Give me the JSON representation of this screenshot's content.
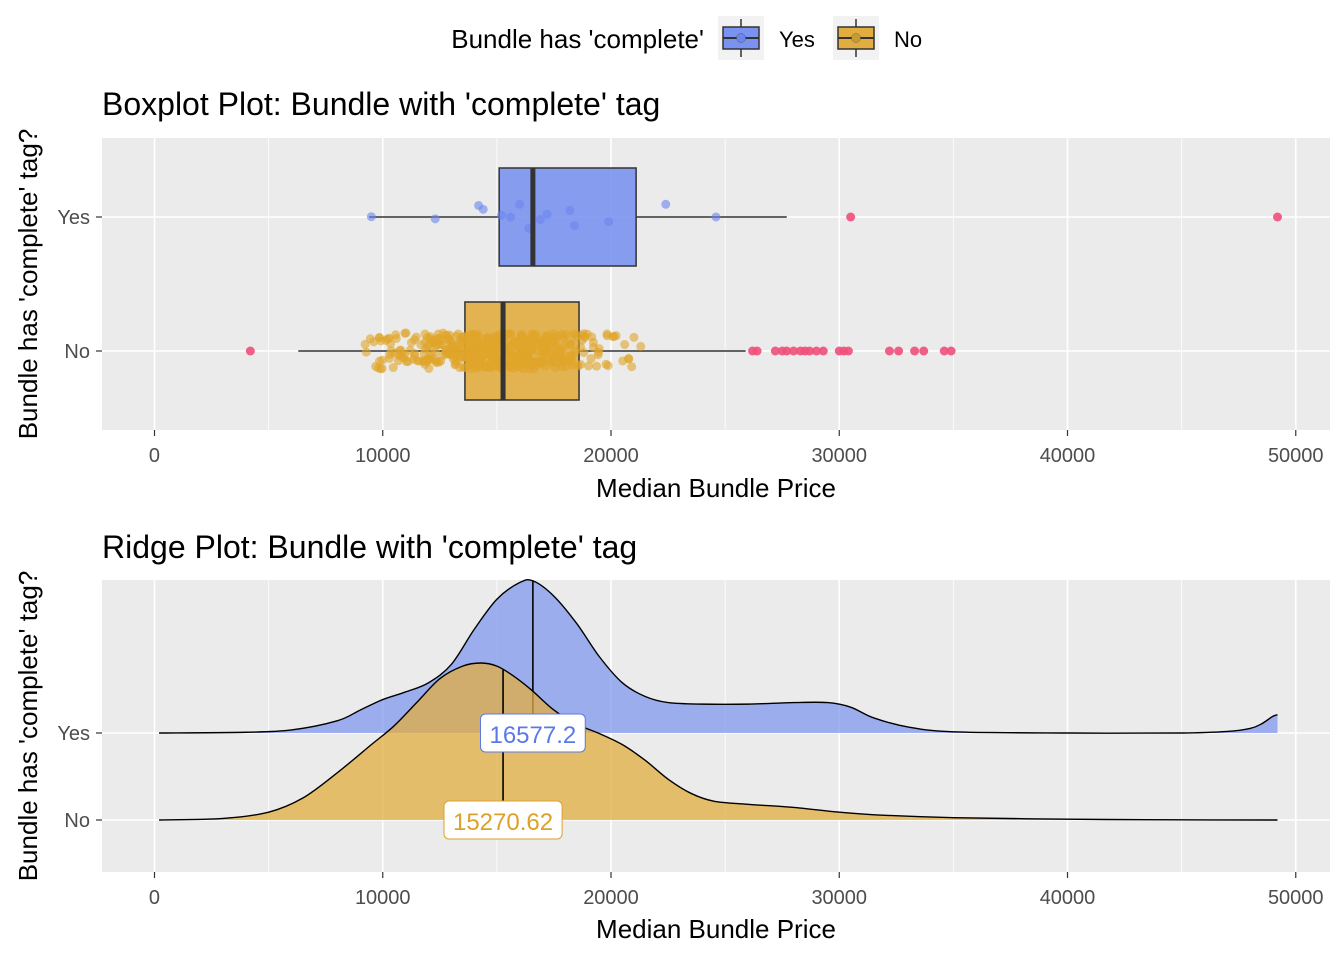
{
  "legend": {
    "title": "Bundle has 'complete'",
    "placement": "top-center",
    "items": [
      {
        "label": "Yes",
        "color": "#6A85EE"
      },
      {
        "label": "No",
        "color": "#E0A52A"
      }
    ]
  },
  "colors": {
    "yes_fill": "#7B93F0",
    "no_fill": "#E2AD40",
    "outlier": "#F0507A",
    "panel_bg": "#EBEBEB",
    "grid": "#FFFFFF",
    "box_line": "#333333"
  },
  "chart_data": [
    {
      "type": "boxplot",
      "title": "Boxplot Plot: Bundle with 'complete' tag",
      "xlabel": "Median Bundle Price",
      "ylabel": "Bundle has 'complete' tag?",
      "xlim": [
        -2300,
        51500
      ],
      "x_ticks": [
        0,
        10000,
        20000,
        30000,
        40000,
        50000
      ],
      "x_tick_labels": [
        "0",
        "10000",
        "20000",
        "30000",
        "40000",
        "50000"
      ],
      "categories": [
        "Yes",
        "No"
      ],
      "grid": true,
      "boxes": [
        {
          "name": "Yes",
          "whisker_low": 9400,
          "q1": 15100,
          "median": 16577.2,
          "q3": 21100,
          "whisker_high": 27700,
          "outliers": [
            30500,
            49200
          ],
          "points": [
            9500,
            12300,
            14200,
            14400,
            15200,
            15600,
            16000,
            16400,
            16900,
            17200,
            18200,
            18400,
            19900,
            22400,
            24600
          ]
        },
        {
          "name": "No",
          "whisker_low": 6300,
          "q1": 13600,
          "median": 15270.62,
          "q3": 18600,
          "whisker_high": 25900,
          "outliers": [
            4200,
            26200,
            26400,
            27200,
            27500,
            27700,
            28000,
            28300,
            28500,
            28700,
            29000,
            29300,
            30000,
            30200,
            30400,
            32200,
            32600,
            33300,
            33700,
            34600,
            34900
          ],
          "points_range": [
            7800,
            22500
          ]
        }
      ]
    },
    {
      "type": "ridge",
      "title": "Ridge Plot: Bundle with 'complete' tag",
      "xlabel": "Median Bundle Price",
      "ylabel": "Bundle has 'complete' tag?",
      "xlim": [
        -2300,
        51500
      ],
      "x_ticks": [
        0,
        10000,
        20000,
        30000,
        40000,
        50000
      ],
      "x_tick_labels": [
        "0",
        "10000",
        "20000",
        "30000",
        "40000",
        "50000"
      ],
      "categories": [
        "Yes",
        "No"
      ],
      "grid": true,
      "series": [
        {
          "name": "Yes",
          "median": 16577.2,
          "median_label": "16577.2",
          "x": [
            200,
            4000,
            6000,
            8000,
            9000,
            10000,
            11000,
            12000,
            13000,
            14000,
            15000,
            16000,
            16600,
            17500,
            18500,
            19500,
            20500,
            21500,
            22500,
            24000,
            26000,
            28000,
            29500,
            30500,
            31500,
            33000,
            35000,
            40000,
            45000,
            47000,
            48000,
            48500,
            49000,
            49200
          ],
          "density": [
            0,
            0.005,
            0.02,
            0.08,
            0.15,
            0.22,
            0.27,
            0.33,
            0.45,
            0.68,
            0.88,
            0.99,
            1.0,
            0.9,
            0.72,
            0.5,
            0.33,
            0.24,
            0.2,
            0.19,
            0.19,
            0.2,
            0.2,
            0.17,
            0.1,
            0.04,
            0.008,
            0,
            0,
            0.01,
            0.03,
            0.06,
            0.11,
            0.12
          ]
        },
        {
          "name": "No",
          "median": 15270.62,
          "median_label": "15270.62",
          "x": [
            200,
            3000,
            5000,
            6500,
            8000,
            9500,
            10500,
            11500,
            12500,
            13500,
            14300,
            15000,
            15700,
            16500,
            17500,
            18500,
            19500,
            20500,
            21500,
            22500,
            23500,
            24500,
            26000,
            28000,
            30000,
            32000,
            35000,
            40000,
            45000,
            49200
          ],
          "density": [
            0,
            0.01,
            0.05,
            0.14,
            0.3,
            0.48,
            0.6,
            0.75,
            0.9,
            0.98,
            1.0,
            0.98,
            0.92,
            0.83,
            0.7,
            0.61,
            0.55,
            0.48,
            0.38,
            0.26,
            0.17,
            0.12,
            0.1,
            0.08,
            0.05,
            0.03,
            0.015,
            0.005,
            0.001,
            0
          ]
        }
      ]
    }
  ]
}
